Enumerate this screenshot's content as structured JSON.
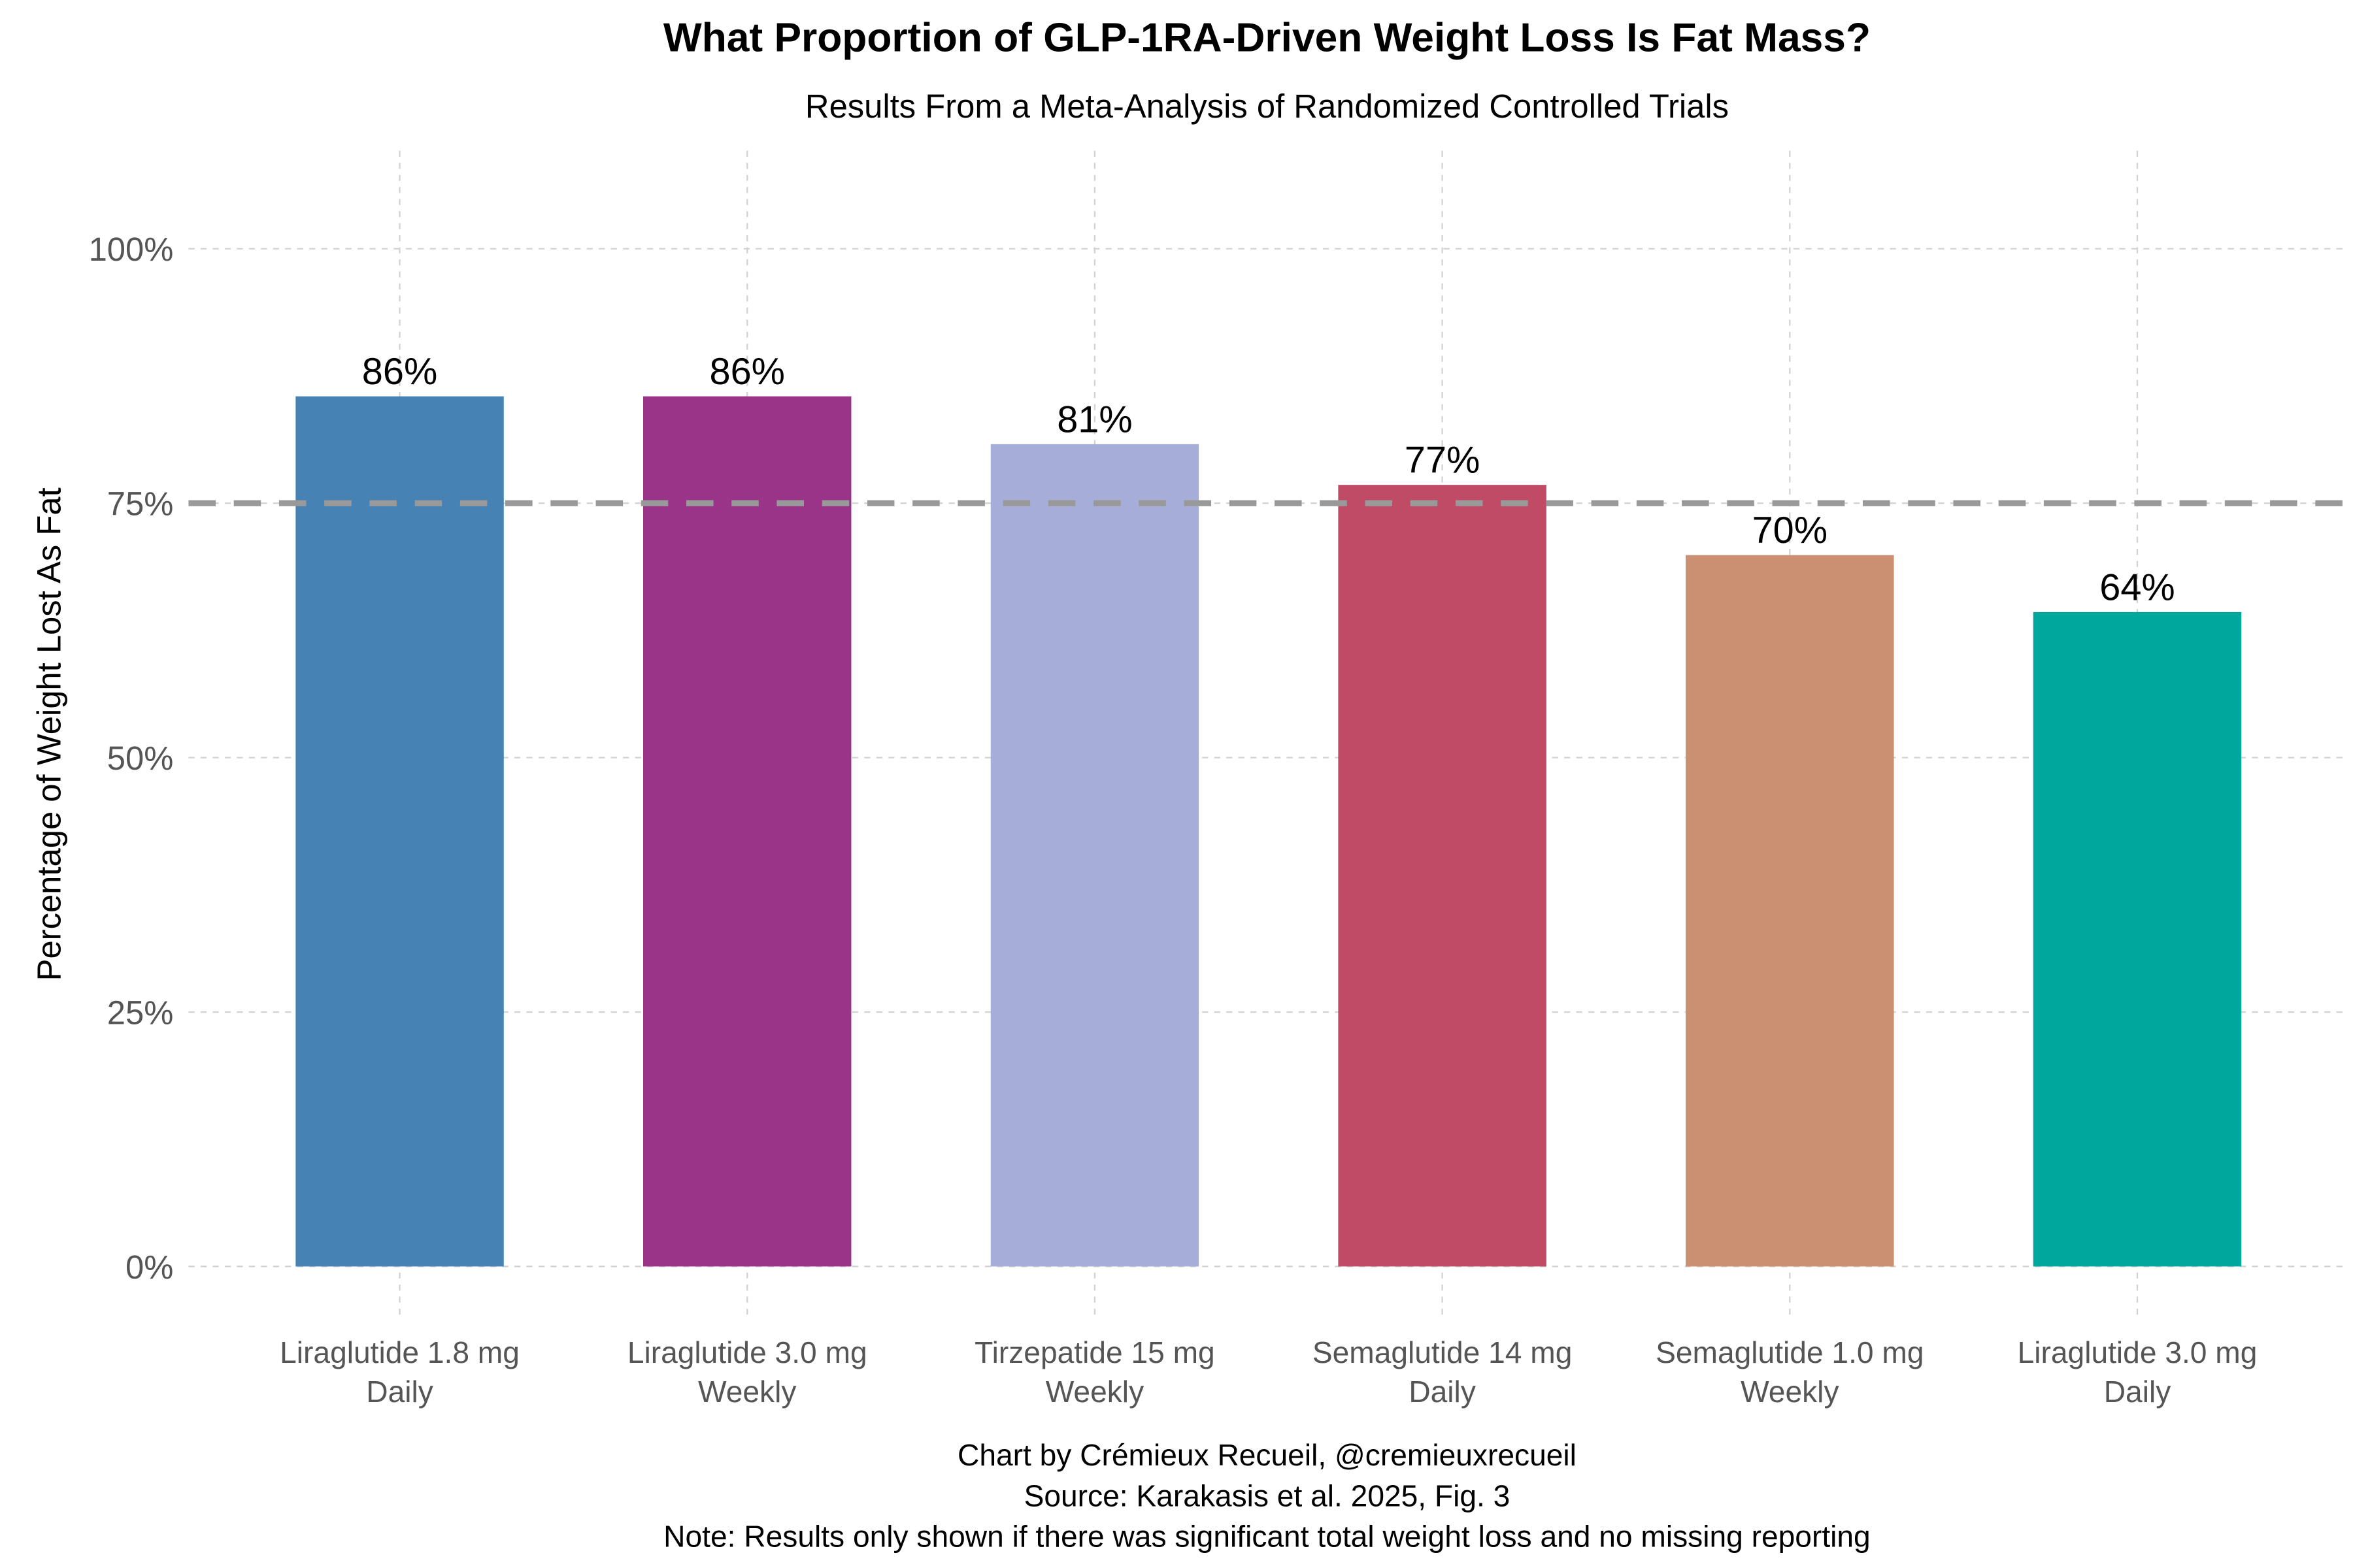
{
  "chart_data": {
    "type": "bar",
    "title": "What Proportion of GLP-1RA-Driven Weight Loss Is Fat Mass?",
    "subtitle": "Results From a Meta-Analysis of Randomized Controlled Trials",
    "ylabel": "Percentage of Weight Lost As Fat",
    "xlabel": "",
    "ylim": [
      0,
      110
    ],
    "yticks": [
      0,
      25,
      50,
      75,
      100
    ],
    "ytick_labels": [
      "0%",
      "25%",
      "50%",
      "75%",
      "100%"
    ],
    "grid": true,
    "reference_line": {
      "value": 75,
      "style": "dashed",
      "color": "#999999"
    },
    "categories": [
      [
        "Liraglutide 1.8 mg",
        "Daily"
      ],
      [
        "Liraglutide 3.0 mg",
        "Weekly"
      ],
      [
        "Tirzepatide 15 mg",
        "Weekly"
      ],
      [
        "Semaglutide 14 mg",
        "Daily"
      ],
      [
        "Semaglutide 1.0 mg",
        "Weekly"
      ],
      [
        "Liraglutide 3.0 mg",
        "Daily"
      ]
    ],
    "values": [
      85.5,
      85.5,
      80.8,
      76.8,
      69.9,
      64.3
    ],
    "data_labels": [
      "86%",
      "86%",
      "81%",
      "77%",
      "70%",
      "64%"
    ],
    "colors": [
      "#4682B4",
      "#993489",
      "#A7ADD9",
      "#C04B67",
      "#CB8F72",
      "#00A79D"
    ],
    "caption": [
      "Chart by Crémieux Recueil, @cremieuxrecueil",
      "Source: Karakasis et al. 2025, Fig. 3",
      "Note: Results only shown if there was significant total weight loss and no missing reporting"
    ]
  }
}
